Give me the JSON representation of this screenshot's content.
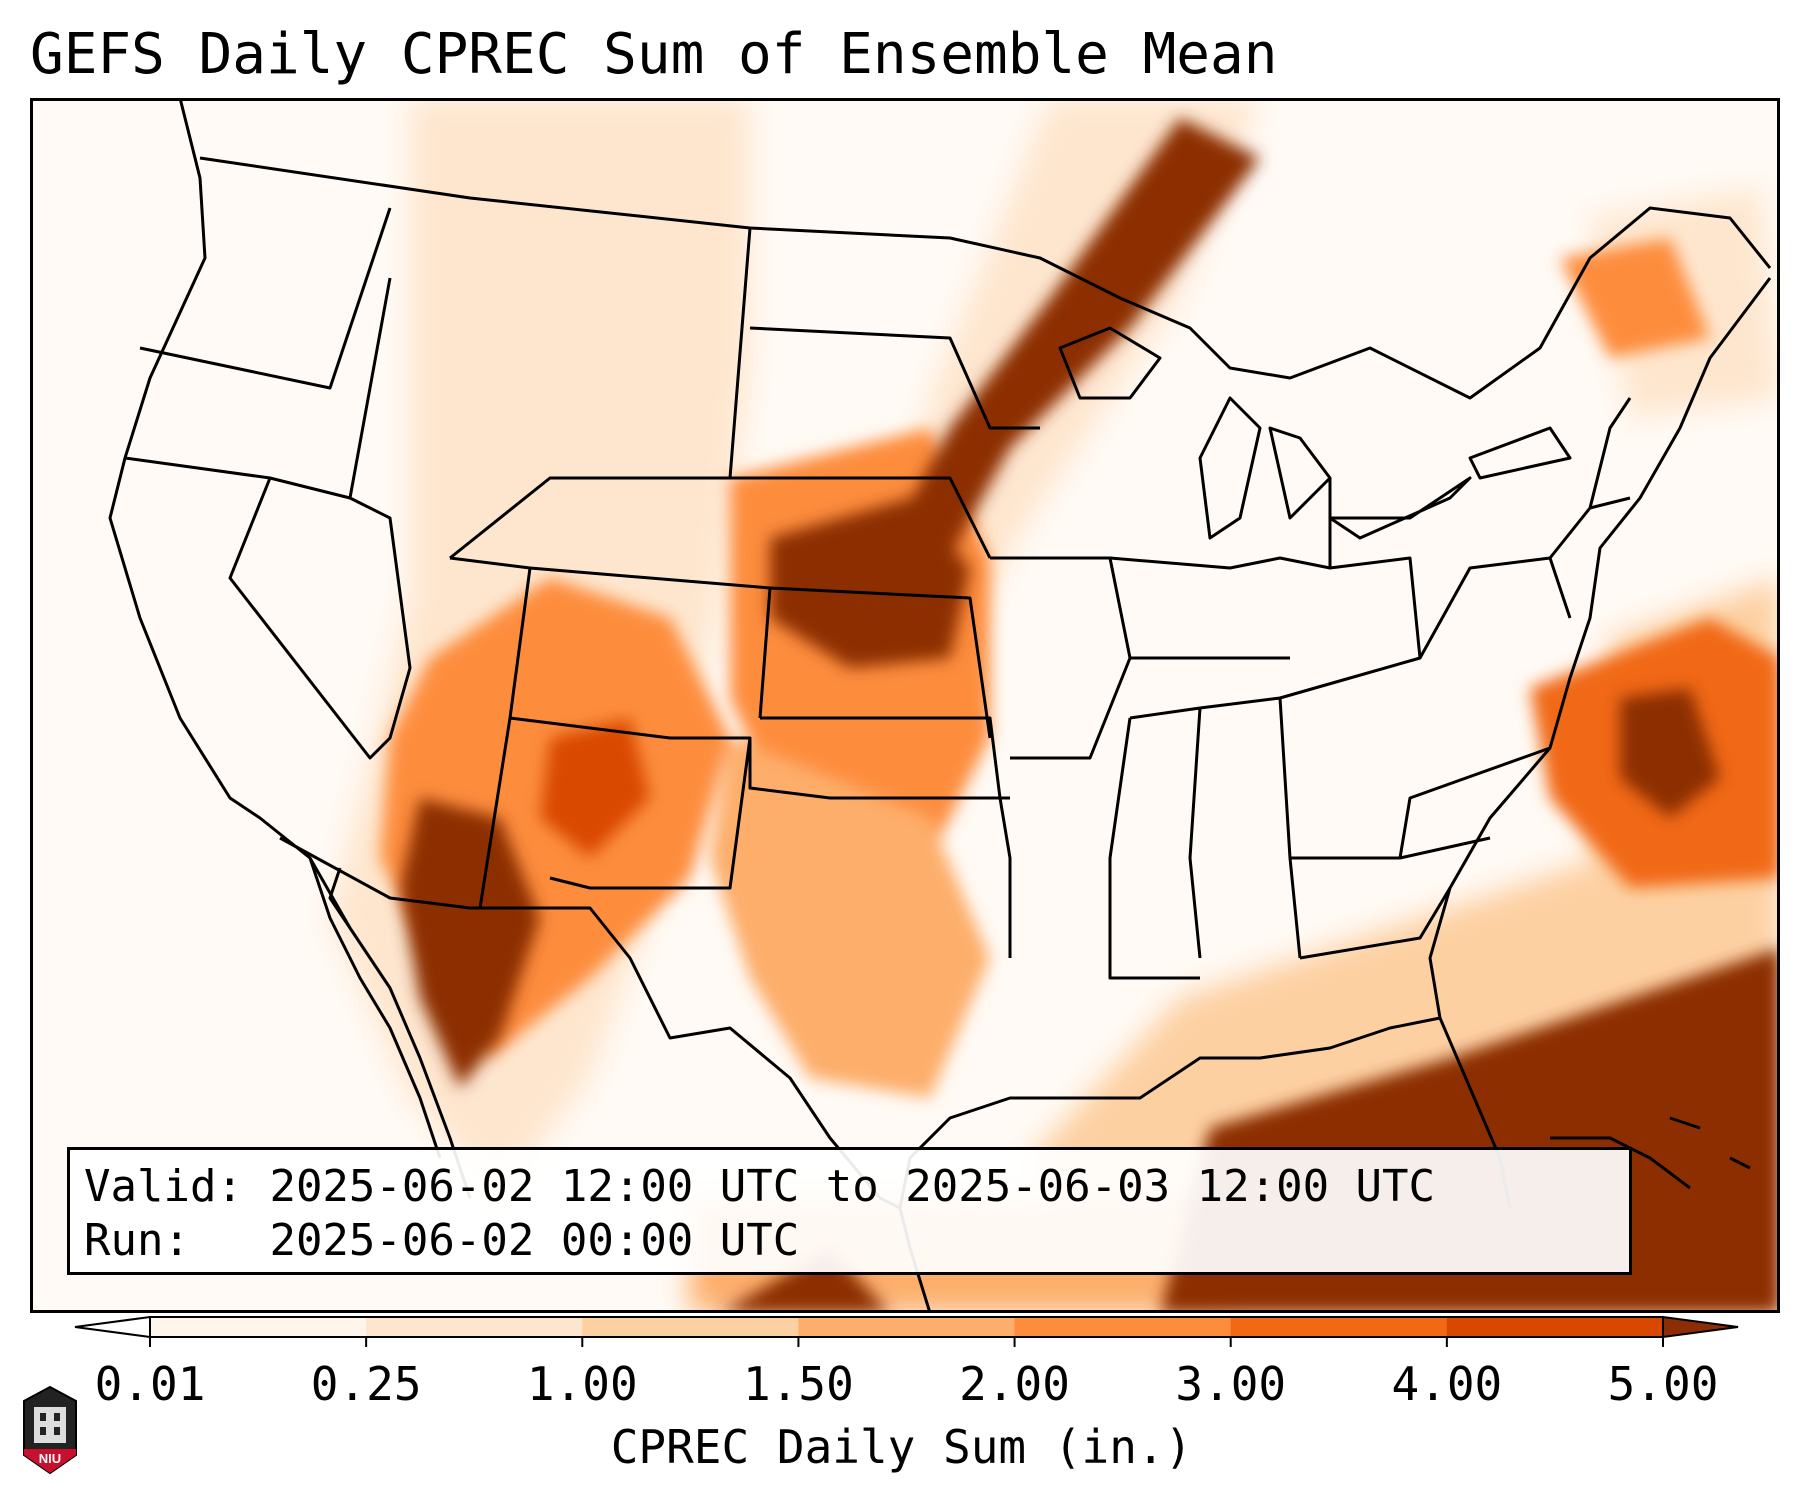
{
  "title": "GEFS Daily CPREC Sum of Ensemble Mean",
  "info": {
    "valid_label": "Valid:",
    "valid_value": "2025-06-02 12:00 UTC to 2025-06-03 12:00 UTC",
    "run_label": "Run:  ",
    "run_value": "2025-06-02 00:00 UTC"
  },
  "colorbar": {
    "label": "CPREC Daily Sum (in.)",
    "ticks": [
      "0.01",
      "0.25",
      "1.00",
      "1.50",
      "2.00",
      "3.00",
      "4.00",
      "5.00"
    ],
    "colors": [
      "#fff5eb",
      "#fee6ce",
      "#fdd0a2",
      "#fdae6b",
      "#fd8d3c",
      "#f16913",
      "#d94801",
      "#8c2d04"
    ],
    "under_color": "#ffffff",
    "over_color": "#8c2d04"
  },
  "logo": {
    "text": "NIU",
    "color": "#c8102e"
  },
  "colors": {
    "map_outline": "#000000",
    "background": "#ffffff"
  }
}
